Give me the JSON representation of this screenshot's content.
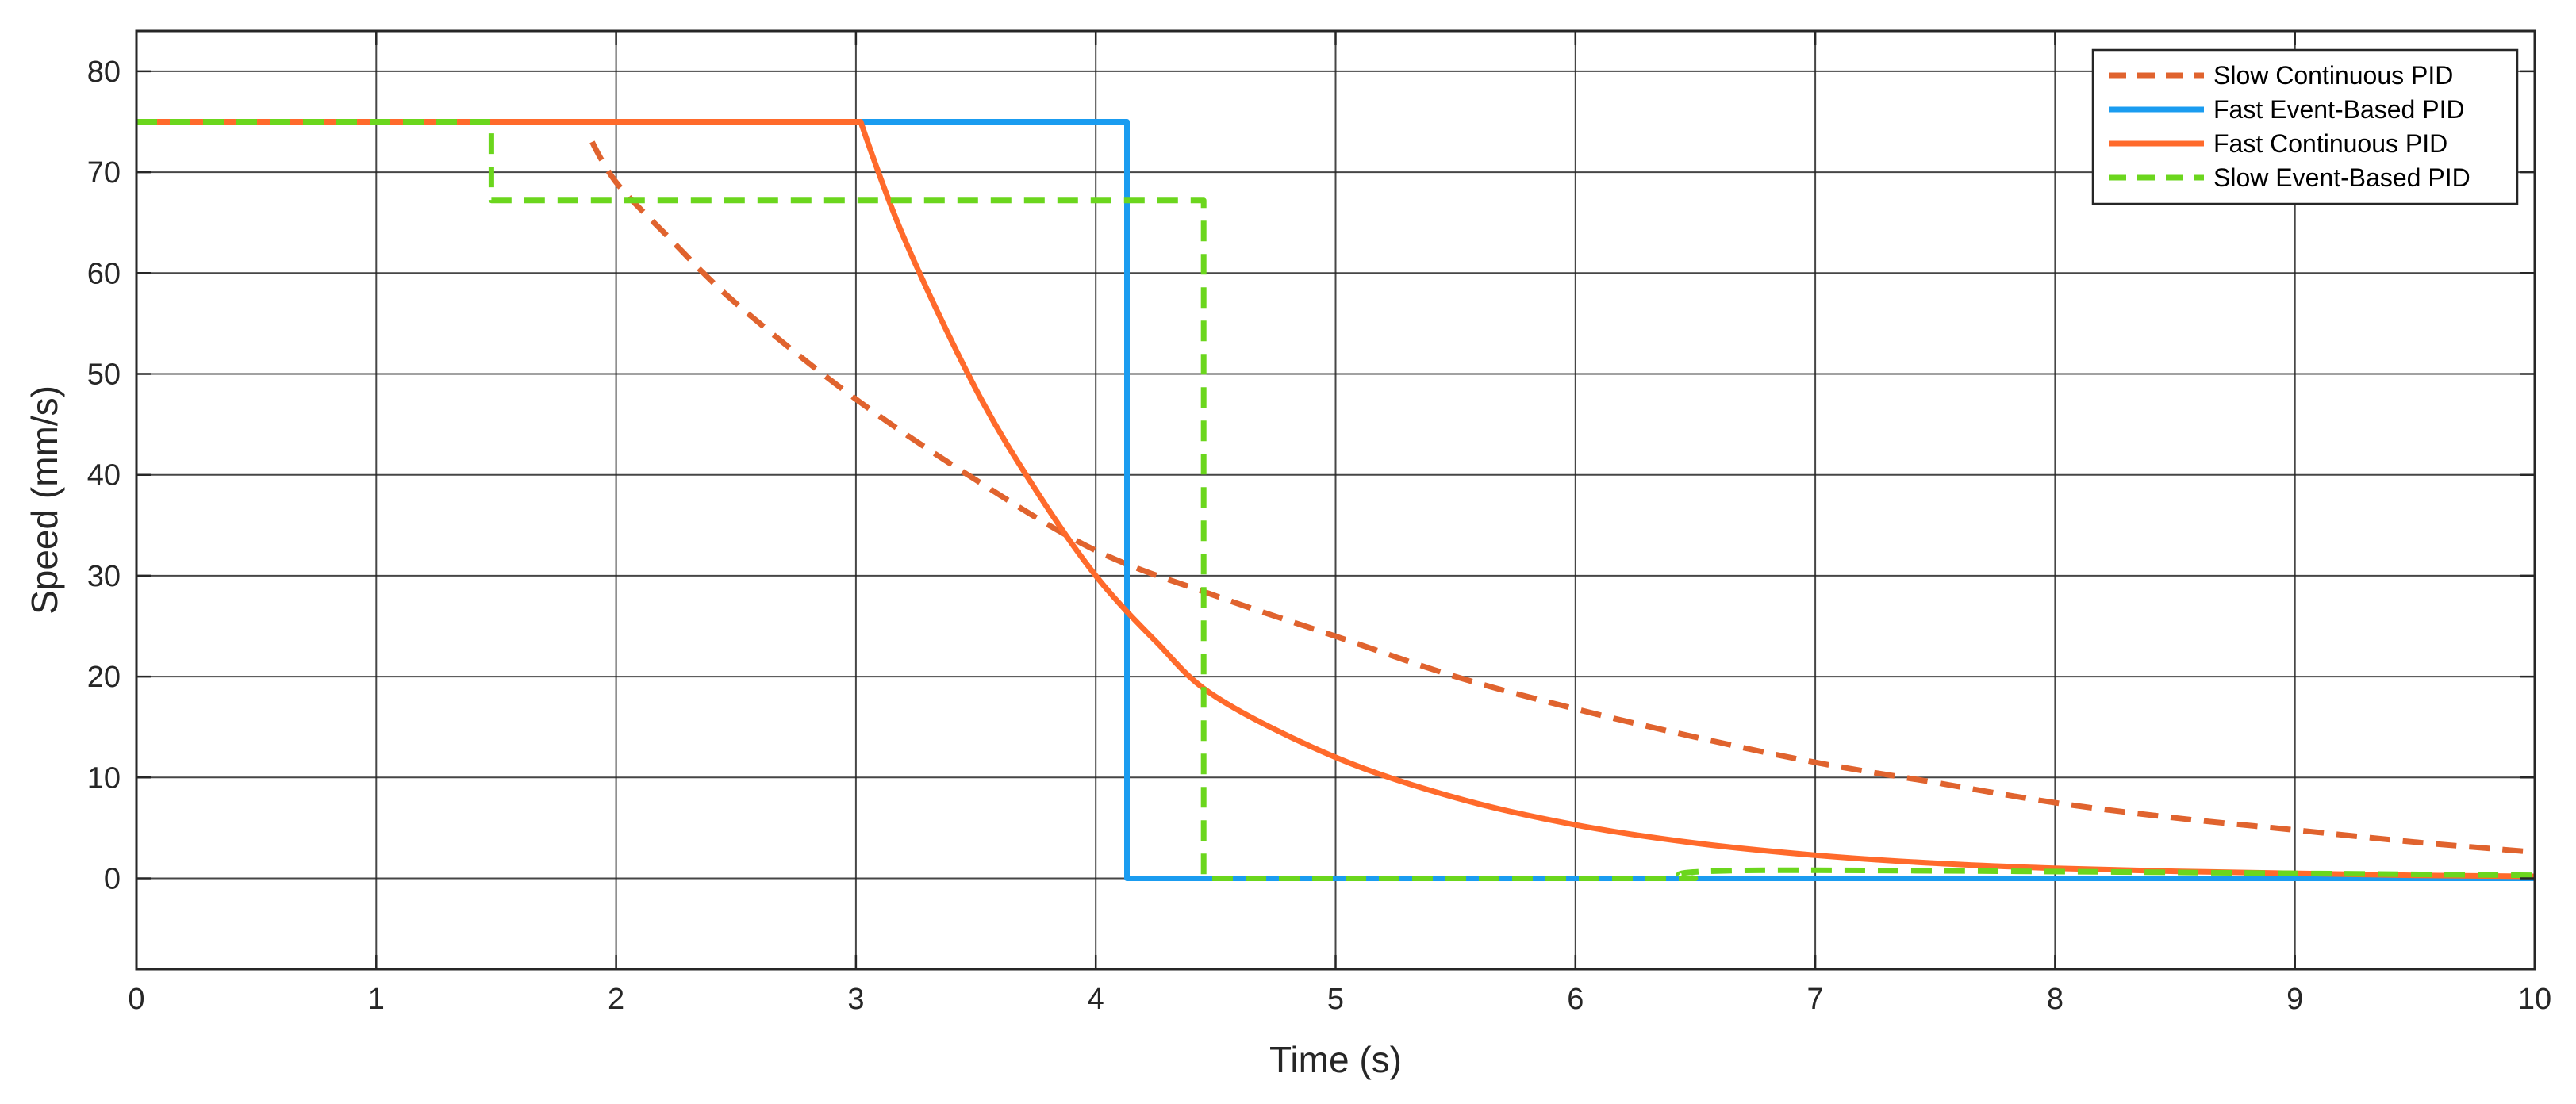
{
  "chart_data": {
    "type": "line",
    "title": "",
    "xlabel": "Time (s)",
    "ylabel": "Speed (mm/s)",
    "xlim": [
      0,
      10
    ],
    "ylim": [
      -9,
      84
    ],
    "xticks": [
      0,
      1,
      2,
      3,
      4,
      5,
      6,
      7,
      8,
      9,
      10
    ],
    "yticks": [
      0,
      10,
      20,
      30,
      40,
      50,
      60,
      70,
      80
    ],
    "xtick_labels": [
      "0",
      "1",
      "2",
      "3",
      "4",
      "5",
      "6",
      "7",
      "8",
      "9",
      "10"
    ],
    "ytick_labels": [
      "0",
      "10",
      "20",
      "30",
      "40",
      "50",
      "60",
      "70",
      "80"
    ],
    "grid": true,
    "legend_position": "top-right",
    "series": [
      {
        "name": "Slow Continuous PID",
        "color": "#E0632E",
        "dash": "dashed",
        "x": [
          1.9,
          2.0,
          2.2,
          2.5,
          3.0,
          3.5,
          4.0,
          4.5,
          5.0,
          5.5,
          6.0,
          6.5,
          7.0,
          7.5,
          8.0,
          8.5,
          9.0,
          9.5,
          10.0
        ],
        "y": [
          73.0,
          69.0,
          64.0,
          57.0,
          47.5,
          39.5,
          32.5,
          28.0,
          24.0,
          20.0,
          16.8,
          14.0,
          11.5,
          9.5,
          7.5,
          6.0,
          4.8,
          3.6,
          2.6
        ]
      },
      {
        "name": "Fast Event-Based PID",
        "color": "#1A9CF0",
        "dash": "solid",
        "x": [
          0,
          4.13,
          4.13,
          10.0
        ],
        "y": [
          75.0,
          75.0,
          0.0,
          0.0
        ]
      },
      {
        "name": "Fast Continuous PID",
        "color": "#FF6A2B",
        "dash": "solid",
        "x": [
          0,
          3.02,
          3.2,
          3.5,
          3.75,
          4.0,
          4.25,
          4.5,
          5.0,
          5.5,
          6.0,
          6.5,
          7.0,
          7.5,
          8.0,
          8.5,
          9.0,
          9.5,
          10.0
        ],
        "y": [
          75.0,
          75.0,
          63.5,
          48.5,
          38.5,
          30.0,
          23.5,
          18.0,
          12.0,
          8.0,
          5.3,
          3.5,
          2.3,
          1.5,
          1.0,
          0.7,
          0.5,
          0.3,
          0.2
        ]
      },
      {
        "name": "Slow Event-Based PID",
        "color": "#6BD61D",
        "dash": "dashed",
        "x": [
          0,
          1.48,
          1.48,
          4.45,
          4.45,
          6.5,
          6.8,
          10.0
        ],
        "y": [
          75.0,
          75.0,
          67.2,
          67.2,
          0.0,
          0.0,
          0.8,
          0.3
        ]
      }
    ]
  }
}
